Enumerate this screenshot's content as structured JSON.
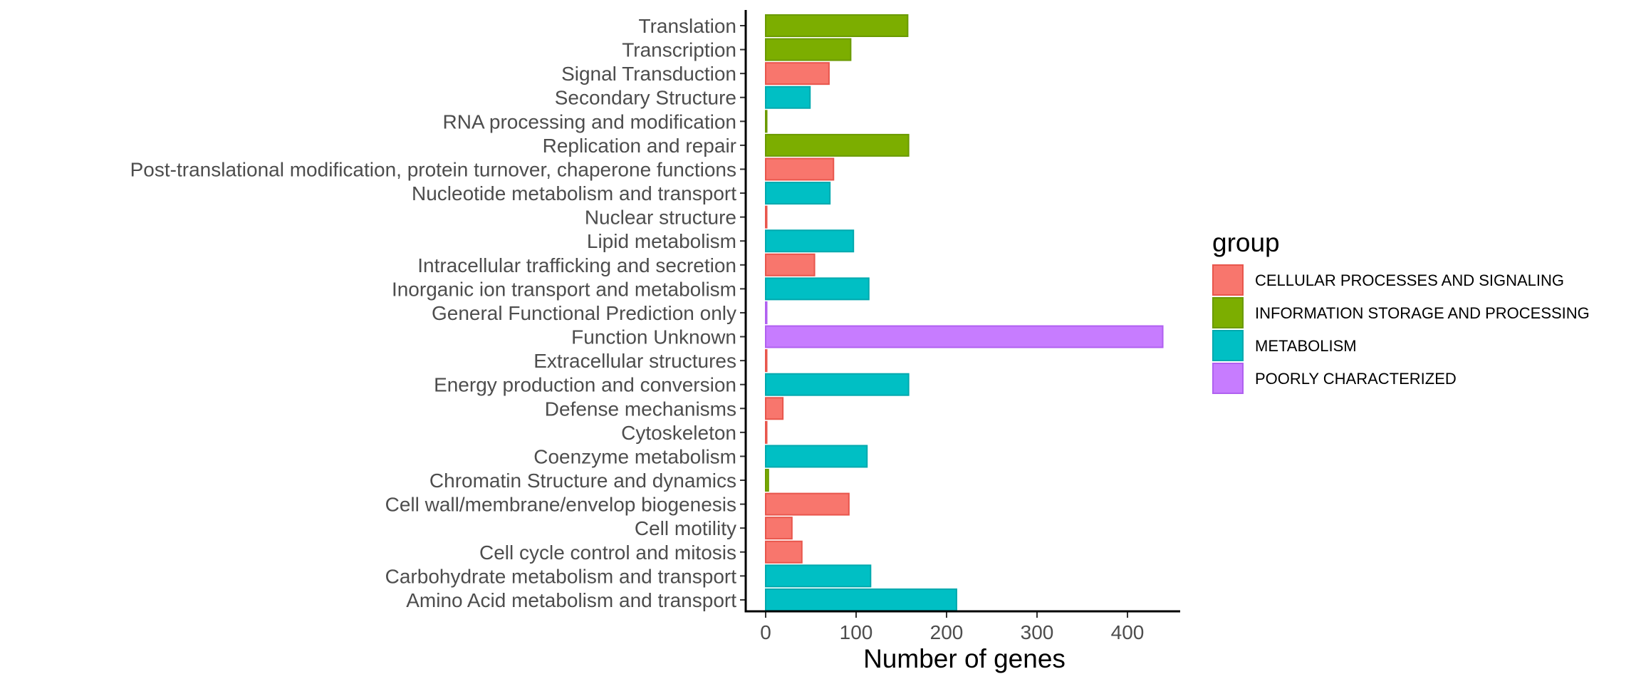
{
  "chart_data": {
    "type": "bar",
    "orientation": "horizontal",
    "xlabel": "Number of genes",
    "ylabel": "",
    "xlim": [
      0,
      460
    ],
    "xticks": [
      0,
      100,
      200,
      300,
      400
    ],
    "grid": false,
    "legend_placement": "right",
    "legend": {
      "title": "group",
      "entries": [
        {
          "name": "CELLULAR PROCESSES AND SIGNALING",
          "color": "#F8766D"
        },
        {
          "name": "INFORMATION STORAGE AND PROCESSING",
          "color": "#7CAE00"
        },
        {
          "name": "METABOLISM",
          "color": "#00BFC4"
        },
        {
          "name": "POORLY CHARACTERIZED",
          "color": "#C77CFF"
        }
      ]
    },
    "categories": [
      "Translation",
      "Transcription",
      "Signal Transduction",
      "Secondary Structure",
      "RNA processing and modification",
      "Replication and repair",
      "Post-translational modification, protein turnover, chaperone functions",
      "Nucleotide metabolism and transport",
      "Nuclear structure",
      "Lipid metabolism",
      "Intracellular trafficking and secretion",
      "Inorganic ion transport and metabolism",
      "General Functional Prediction only",
      "Function Unknown",
      "Extracellular structures",
      "Energy production and conversion",
      "Defense mechanisms",
      "Cytoskeleton",
      "Coenzyme metabolism",
      "Chromatin Structure and dynamics",
      "Cell wall/membrane/envelop biogenesis",
      "Cell motility",
      "Cell cycle control and mitosis",
      "Carbohydrate metabolism and transport",
      "Amino Acid metabolism and transport"
    ],
    "values": [
      157,
      94,
      70,
      49,
      1,
      158,
      75,
      71,
      1,
      97,
      54,
      114,
      1,
      439,
      1,
      158,
      19,
      1,
      112,
      3,
      92,
      29,
      40,
      116,
      211
    ],
    "groups": [
      "INFORMATION STORAGE AND PROCESSING",
      "INFORMATION STORAGE AND PROCESSING",
      "CELLULAR PROCESSES AND SIGNALING",
      "METABOLISM",
      "INFORMATION STORAGE AND PROCESSING",
      "INFORMATION STORAGE AND PROCESSING",
      "CELLULAR PROCESSES AND SIGNALING",
      "METABOLISM",
      "CELLULAR PROCESSES AND SIGNALING",
      "METABOLISM",
      "CELLULAR PROCESSES AND SIGNALING",
      "METABOLISM",
      "POORLY CHARACTERIZED",
      "POORLY CHARACTERIZED",
      "CELLULAR PROCESSES AND SIGNALING",
      "METABOLISM",
      "CELLULAR PROCESSES AND SIGNALING",
      "CELLULAR PROCESSES AND SIGNALING",
      "METABOLISM",
      "INFORMATION STORAGE AND PROCESSING",
      "CELLULAR PROCESSES AND SIGNALING",
      "CELLULAR PROCESSES AND SIGNALING",
      "CELLULAR PROCESSES AND SIGNALING",
      "METABOLISM",
      "METABOLISM"
    ]
  }
}
